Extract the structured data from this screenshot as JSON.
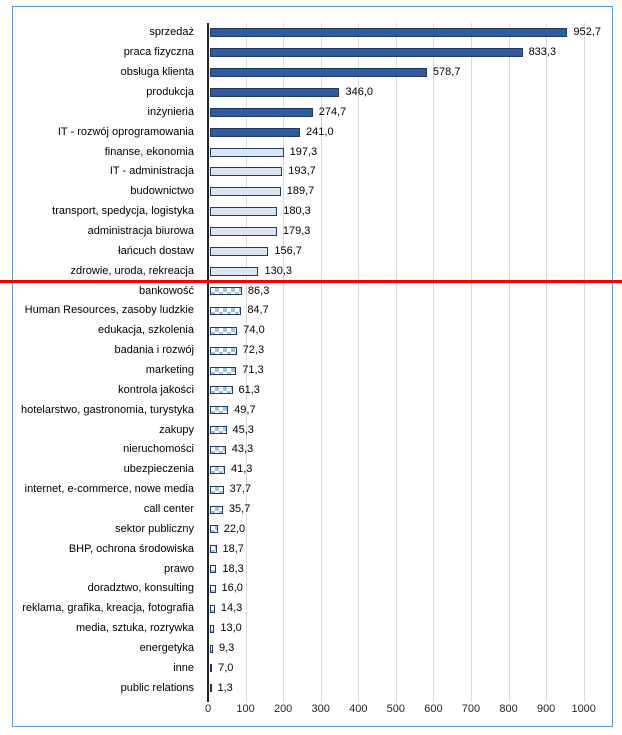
{
  "frame": {
    "border_color": "#5b9bd5"
  },
  "divider": {
    "color": "#f40000",
    "description": "red horizontal separator line between zdrowie,uroda,rekreacja and bankowość"
  },
  "axis": {
    "gridline_color": "#d9d9d9",
    "axis_line_color": "#262626",
    "tick_labels": [
      "0",
      "100",
      "200",
      "300",
      "400",
      "500",
      "600",
      "700",
      "800",
      "900",
      "1000"
    ]
  },
  "bar_styles": {
    "solid-dark": {
      "fill": "#2e5b9c",
      "border": "#1f3864"
    },
    "solid-light": {
      "fill": "#dbe5f1",
      "border": "#1f3864"
    },
    "checker": {
      "fill_a": "#9dc3e6",
      "fill_b": "#ffffff",
      "border": "#1f3864"
    }
  },
  "chart_data": {
    "type": "bar",
    "orientation": "horizontal",
    "title": "",
    "xlabel": "",
    "ylabel": "",
    "xlim": [
      0,
      1000
    ],
    "x_tick_interval": 100,
    "grid": "vertical gridlines every 100",
    "legend": "none",
    "value_format": "comma decimal, one decimal place",
    "bars": [
      {
        "label": "sprzedaż",
        "value": 952.7,
        "display": "952,7",
        "style": "solid-dark"
      },
      {
        "label": "praca fizyczna",
        "value": 833.3,
        "display": "833,3",
        "style": "solid-dark"
      },
      {
        "label": "obsługa klienta",
        "value": 578.7,
        "display": "578,7",
        "style": "solid-dark"
      },
      {
        "label": "produkcja",
        "value": 346.0,
        "display": "346,0",
        "style": "solid-dark"
      },
      {
        "label": "inżynieria",
        "value": 274.7,
        "display": "274,7",
        "style": "solid-dark"
      },
      {
        "label": "IT - rozwój oprogramowania",
        "value": 241.0,
        "display": "241,0",
        "style": "solid-dark"
      },
      {
        "label": "finanse, ekonomia",
        "value": 197.3,
        "display": "197,3",
        "style": "solid-light"
      },
      {
        "label": "IT - administracja",
        "value": 193.7,
        "display": "193,7",
        "style": "solid-light"
      },
      {
        "label": "budownictwo",
        "value": 189.7,
        "display": "189,7",
        "style": "solid-light"
      },
      {
        "label": "transport, spedycja, logistyka",
        "value": 180.3,
        "display": "180,3",
        "style": "solid-light"
      },
      {
        "label": "administracja biurowa",
        "value": 179.3,
        "display": "179,3",
        "style": "solid-light"
      },
      {
        "label": "łańcuch dostaw",
        "value": 156.7,
        "display": "156,7",
        "style": "solid-light"
      },
      {
        "label": "zdrowie, uroda, rekreacja",
        "value": 130.3,
        "display": "130,3",
        "style": "solid-light"
      },
      {
        "label": "bankowość",
        "value": 86.3,
        "display": "86,3",
        "style": "checker"
      },
      {
        "label": "Human Resources, zasoby ludzkie",
        "value": 84.7,
        "display": "84,7",
        "style": "checker"
      },
      {
        "label": "edukacja, szkolenia",
        "value": 74.0,
        "display": "74,0",
        "style": "checker"
      },
      {
        "label": "badania i rozwój",
        "value": 72.3,
        "display": "72,3",
        "style": "checker"
      },
      {
        "label": "marketing",
        "value": 71.3,
        "display": "71,3",
        "style": "checker"
      },
      {
        "label": "kontrola jakości",
        "value": 61.3,
        "display": "61,3",
        "style": "checker"
      },
      {
        "label": "hotelarstwo, gastronomia, turystyka",
        "value": 49.7,
        "display": "49,7",
        "style": "checker"
      },
      {
        "label": "zakupy",
        "value": 45.3,
        "display": "45,3",
        "style": "checker"
      },
      {
        "label": "nieruchomości",
        "value": 43.3,
        "display": "43,3",
        "style": "checker"
      },
      {
        "label": "ubezpieczenia",
        "value": 41.3,
        "display": "41,3",
        "style": "checker"
      },
      {
        "label": "internet, e-commerce, nowe media",
        "value": 37.7,
        "display": "37,7",
        "style": "checker"
      },
      {
        "label": "call center",
        "value": 35.7,
        "display": "35,7",
        "style": "checker"
      },
      {
        "label": "sektor publiczny",
        "value": 22.0,
        "display": "22,0",
        "style": "checker"
      },
      {
        "label": "BHP, ochrona środowiska",
        "value": 18.7,
        "display": "18,7",
        "style": "checker"
      },
      {
        "label": "prawo",
        "value": 18.3,
        "display": "18,3",
        "style": "checker"
      },
      {
        "label": "doradztwo, konsulting",
        "value": 16.0,
        "display": "16,0",
        "style": "checker"
      },
      {
        "label": "reklama, grafika, kreacja, fotografia",
        "value": 14.3,
        "display": "14,3",
        "style": "checker"
      },
      {
        "label": "media, sztuka, rozrywka",
        "value": 13.0,
        "display": "13,0",
        "style": "checker"
      },
      {
        "label": "energetyka",
        "value": 9.3,
        "display": "9,3",
        "style": "checker"
      },
      {
        "label": "inne",
        "value": 7.0,
        "display": "7,0",
        "style": "checker"
      },
      {
        "label": "public relations",
        "value": 1.3,
        "display": "1,3",
        "style": "checker"
      }
    ]
  }
}
